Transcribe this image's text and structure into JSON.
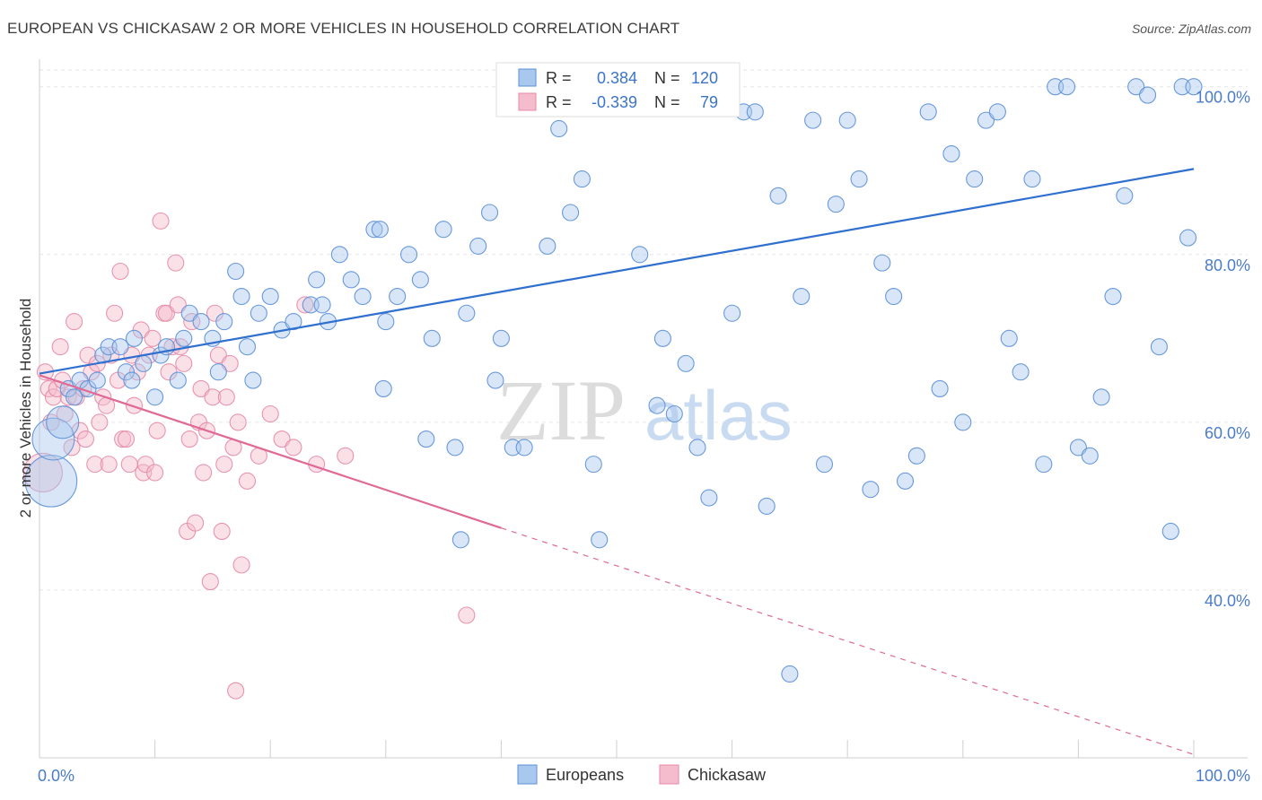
{
  "header": {
    "title": "EUROPEAN VS CHICKASAW 2 OR MORE VEHICLES IN HOUSEHOLD CORRELATION CHART",
    "source": "Source: ZipAtlas.com"
  },
  "watermark": {
    "zip": "ZIP",
    "atlas": "atlas"
  },
  "colors": {
    "blue_fill": "#a9c8ee",
    "blue_stroke": "#5b8fd6",
    "blue_line": "#2f6fcf",
    "pink_fill": "#f5bccd",
    "pink_stroke": "#e68aa8",
    "pink_line": "#e06a95",
    "tick_text": "#4a7cc9",
    "grid": "#e6e6e6"
  },
  "chart_data": {
    "type": "scatter",
    "title": "EUROPEAN VS CHICKASAW 2 OR MORE VEHICLES IN HOUSEHOLD CORRELATION CHART",
    "xlabel": "",
    "ylabel": "2 or more Vehicles in Household",
    "xlim": [
      0,
      100
    ],
    "ylim": [
      20,
      102
    ],
    "x_ticks": [
      {
        "value": 0,
        "label": "0.0%"
      },
      {
        "value": 100,
        "label": "100.0%"
      }
    ],
    "y_ticks": [
      {
        "value": 40,
        "label": "40.0%"
      },
      {
        "value": 60,
        "label": "60.0%"
      },
      {
        "value": 80,
        "label": "80.0%"
      },
      {
        "value": 100,
        "label": "100.0%"
      }
    ],
    "grid": true,
    "legend_position": "bottom-center",
    "stats_box": {
      "rows": [
        {
          "series": "Europeans",
          "r_label": "R =",
          "r": "0.384",
          "n_label": "N =",
          "n": "120"
        },
        {
          "series": "Chickasaw",
          "r_label": "R =",
          "r": "-0.339",
          "n_label": "N =",
          "n": "79"
        }
      ]
    },
    "series": [
      {
        "name": "Europeans",
        "trend": {
          "x0": 0,
          "y0": 65.8,
          "x1": 100,
          "y1": 90.2,
          "dashed_from": null
        },
        "points": [
          [
            1.0,
            53
          ],
          [
            1.2,
            58
          ],
          [
            2.0,
            60
          ],
          [
            2.5,
            64
          ],
          [
            3.0,
            63
          ],
          [
            3.5,
            65
          ],
          [
            4.2,
            64
          ],
          [
            5.0,
            65
          ],
          [
            5.5,
            68
          ],
          [
            6.0,
            69
          ],
          [
            7.0,
            69
          ],
          [
            7.5,
            66
          ],
          [
            8.0,
            65
          ],
          [
            8.2,
            70
          ],
          [
            9.0,
            67
          ],
          [
            10.0,
            63
          ],
          [
            10.5,
            68
          ],
          [
            11.0,
            69
          ],
          [
            12.0,
            65
          ],
          [
            12.5,
            70
          ],
          [
            13.0,
            73
          ],
          [
            14.0,
            72
          ],
          [
            15.0,
            70
          ],
          [
            15.5,
            66
          ],
          [
            16.0,
            72
          ],
          [
            17.0,
            78
          ],
          [
            17.5,
            75
          ],
          [
            18.0,
            69
          ],
          [
            18.5,
            65
          ],
          [
            19.0,
            73
          ],
          [
            20.0,
            75
          ],
          [
            21.0,
            71
          ],
          [
            22.0,
            72
          ],
          [
            23.5,
            74
          ],
          [
            24.0,
            77
          ],
          [
            24.5,
            74
          ],
          [
            25.0,
            72
          ],
          [
            26.0,
            80
          ],
          [
            27.0,
            77
          ],
          [
            28.0,
            75
          ],
          [
            29.0,
            83
          ],
          [
            29.5,
            83
          ],
          [
            30.0,
            72
          ],
          [
            31.0,
            75
          ],
          [
            32.0,
            80
          ],
          [
            33.0,
            77
          ],
          [
            34.0,
            70
          ],
          [
            35.0,
            83
          ],
          [
            36.0,
            57
          ],
          [
            37.0,
            73
          ],
          [
            38.0,
            81
          ],
          [
            39.0,
            85
          ],
          [
            40.0,
            70
          ],
          [
            41.0,
            57
          ],
          [
            42.0,
            57
          ],
          [
            43.0,
            99
          ],
          [
            44.0,
            81
          ],
          [
            45.0,
            95
          ],
          [
            46.0,
            85
          ],
          [
            47.0,
            89
          ],
          [
            48.0,
            55
          ],
          [
            49.0,
            100
          ],
          [
            50.0,
            100
          ],
          [
            51.0,
            100
          ],
          [
            52.0,
            80
          ],
          [
            53.0,
            100
          ],
          [
            54.0,
            70
          ],
          [
            55.0,
            61
          ],
          [
            56.0,
            67
          ],
          [
            57.0,
            57
          ],
          [
            58.0,
            51
          ],
          [
            59.0,
            100
          ],
          [
            60.0,
            73
          ],
          [
            61.0,
            97
          ],
          [
            62.0,
            97
          ],
          [
            63.0,
            50
          ],
          [
            64.0,
            87
          ],
          [
            65.0,
            30
          ],
          [
            66.0,
            75
          ],
          [
            67.0,
            96
          ],
          [
            68.0,
            55
          ],
          [
            69.0,
            86
          ],
          [
            70.0,
            96
          ],
          [
            71.0,
            89
          ],
          [
            72.0,
            52
          ],
          [
            73.0,
            79
          ],
          [
            74.0,
            75
          ],
          [
            75.0,
            53
          ],
          [
            76.0,
            56
          ],
          [
            77.0,
            97
          ],
          [
            78.0,
            64
          ],
          [
            79.0,
            92
          ],
          [
            80.0,
            60
          ],
          [
            81.0,
            89
          ],
          [
            82.0,
            96
          ],
          [
            83.0,
            97
          ],
          [
            84.0,
            70
          ],
          [
            85.0,
            66
          ],
          [
            86.0,
            89
          ],
          [
            87.0,
            55
          ],
          [
            88.0,
            100
          ],
          [
            89.0,
            100
          ],
          [
            90.0,
            57
          ],
          [
            91.0,
            56
          ],
          [
            92.0,
            63
          ],
          [
            93.0,
            75
          ],
          [
            94.0,
            87
          ],
          [
            95.0,
            100
          ],
          [
            96.0,
            99
          ],
          [
            97.0,
            69
          ],
          [
            98.0,
            47
          ],
          [
            99.0,
            100
          ],
          [
            99.5,
            82
          ],
          [
            100.0,
            100
          ],
          [
            36.5,
            46
          ],
          [
            48.5,
            46
          ],
          [
            53.5,
            62
          ],
          [
            29.8,
            64
          ],
          [
            33.5,
            58
          ],
          [
            39.5,
            65
          ]
        ],
        "sizes": {
          "0": 3.2,
          "1": 2.6,
          "2": 2.0
        }
      },
      {
        "name": "Chickasaw",
        "trend": {
          "x0": 0,
          "y0": 65.6,
          "x1": 40,
          "y1": 47.4,
          "dashed_from": 40,
          "x2": 100,
          "y2": 20.4
        },
        "points": [
          [
            0.3,
            54
          ],
          [
            0.5,
            66
          ],
          [
            0.8,
            64
          ],
          [
            1.0,
            60
          ],
          [
            1.2,
            63
          ],
          [
            1.5,
            64
          ],
          [
            1.8,
            69
          ],
          [
            2.0,
            65
          ],
          [
            2.2,
            61
          ],
          [
            2.5,
            63
          ],
          [
            2.8,
            57
          ],
          [
            3.0,
            72
          ],
          [
            3.2,
            63
          ],
          [
            3.5,
            59
          ],
          [
            3.8,
            64
          ],
          [
            4.0,
            58
          ],
          [
            4.2,
            68
          ],
          [
            4.5,
            66
          ],
          [
            4.8,
            55
          ],
          [
            5.0,
            67
          ],
          [
            5.2,
            60
          ],
          [
            5.5,
            63
          ],
          [
            5.8,
            62
          ],
          [
            6.0,
            55
          ],
          [
            6.2,
            68
          ],
          [
            6.5,
            73
          ],
          [
            6.8,
            65
          ],
          [
            7.0,
            78
          ],
          [
            7.2,
            58
          ],
          [
            7.5,
            58
          ],
          [
            7.8,
            55
          ],
          [
            8.0,
            68
          ],
          [
            8.2,
            62
          ],
          [
            8.5,
            66
          ],
          [
            8.8,
            71
          ],
          [
            9.0,
            54
          ],
          [
            9.2,
            55
          ],
          [
            9.5,
            68
          ],
          [
            9.8,
            70
          ],
          [
            10.0,
            54
          ],
          [
            10.2,
            59
          ],
          [
            10.5,
            84
          ],
          [
            10.8,
            73
          ],
          [
            11.0,
            73
          ],
          [
            11.2,
            66
          ],
          [
            11.5,
            69
          ],
          [
            11.8,
            79
          ],
          [
            12.0,
            74
          ],
          [
            12.2,
            69
          ],
          [
            12.5,
            67
          ],
          [
            12.8,
            47
          ],
          [
            13.0,
            58
          ],
          [
            13.2,
            72
          ],
          [
            13.5,
            48
          ],
          [
            13.8,
            60
          ],
          [
            14.0,
            64
          ],
          [
            14.2,
            54
          ],
          [
            14.5,
            59
          ],
          [
            14.8,
            41
          ],
          [
            15.0,
            63
          ],
          [
            15.2,
            73
          ],
          [
            15.5,
            68
          ],
          [
            15.8,
            47
          ],
          [
            16.0,
            55
          ],
          [
            16.2,
            63
          ],
          [
            16.5,
            67
          ],
          [
            16.8,
            57
          ],
          [
            17.0,
            28
          ],
          [
            17.2,
            60
          ],
          [
            17.5,
            43
          ],
          [
            18.0,
            53
          ],
          [
            19.0,
            56
          ],
          [
            20.0,
            61
          ],
          [
            21.0,
            58
          ],
          [
            22.0,
            57
          ],
          [
            23.0,
            74
          ],
          [
            24.0,
            55
          ],
          [
            26.5,
            56
          ],
          [
            37.0,
            37
          ]
        ],
        "sizes": {
          "0": 2.4
        }
      }
    ]
  },
  "legend": {
    "items": [
      {
        "label": "Europeans"
      },
      {
        "label": "Chickasaw"
      }
    ]
  }
}
